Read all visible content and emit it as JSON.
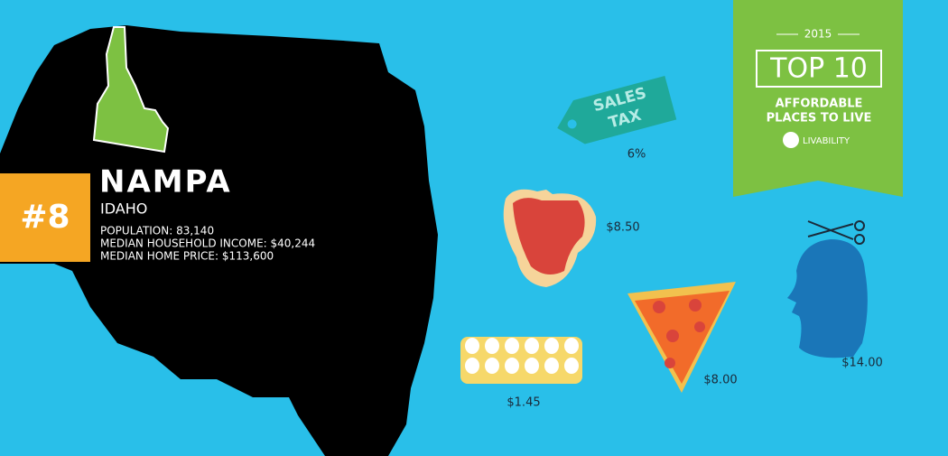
{
  "badge": {
    "year": "2015",
    "title": "TOP 10",
    "subtitle_lines": [
      "AFFORDABLE",
      "PLACES TO LIVE"
    ],
    "brand": "LIVABILITY"
  },
  "city": {
    "rank": "#8",
    "name": "NAMPA",
    "state": "IDAHO",
    "stats": [
      "POPULATION: 83,140",
      "MEDIAN HOUSEHOLD INCOME: $40,244",
      "MEDIAN HOME PRICE: $113,600"
    ]
  },
  "costs": {
    "sales_tax": {
      "tag_lines": [
        "SALES",
        "TAX"
      ],
      "value": "6%"
    },
    "steak": "$8.50",
    "eggs": "$1.45",
    "pizza": "$8.00",
    "haircut": "$14.00"
  }
}
